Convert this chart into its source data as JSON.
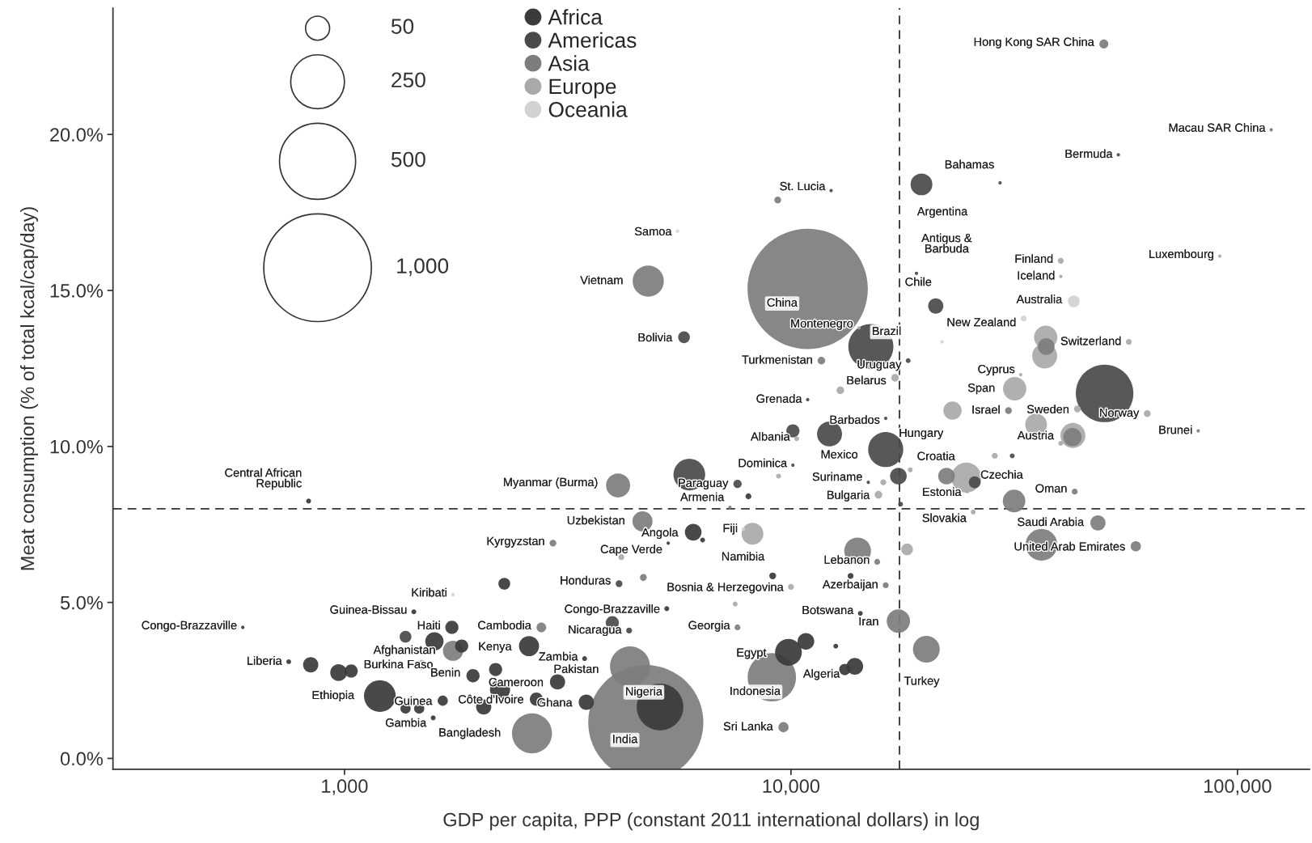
{
  "chart_data": {
    "type": "bubble",
    "xlabel": "GDP per capita, PPP (constant 2011 international dollars) in log",
    "ylabel": "Meat consumption (% of total kcal/cap/day)",
    "log": "x",
    "xlim": [
      303,
      145000
    ],
    "xticks": [
      {
        "value": 1000,
        "label": "1,000"
      },
      {
        "value": 10000,
        "label": "10,000"
      },
      {
        "value": 100000,
        "label": "100,000"
      }
    ],
    "ylim": [
      -0.35,
      24.05
    ],
    "yticks": [
      {
        "value": 0,
        "label": "0.0%"
      },
      {
        "value": 5,
        "label": "5.0%"
      },
      {
        "value": 10,
        "label": "10.0%"
      },
      {
        "value": 15,
        "label": "15.0%"
      },
      {
        "value": 20,
        "label": "20.0%"
      }
    ],
    "grid": false,
    "legend": "top left",
    "size_legend": [
      50,
      250,
      500,
      {
        "value": 1000,
        "label": "1,000"
      }
    ],
    "ref_lines": [
      {
        "axis": "y",
        "value": 8.0,
        "line_style": "dashed",
        "color": "#333333"
      },
      {
        "axis": "x",
        "value": 17500,
        "line_style": "dashed",
        "color": "#333333"
      }
    ],
    "series": [
      {
        "name": "Africa",
        "color": "#3a3a3a",
        "x": [
          750,
          840,
          970,
          1035,
          1200,
          1430,
          1590,
          1740,
          1830,
          1660,
          1370,
          1470,
          1580,
          1940,
          2180,
          2590,
          3450,
          2230,
          2050,
          2280,
          3000,
          2690,
          3480,
          5090,
          9870,
          10800,
          13900,
          13200,
          12600,
          6040,
          6340,
          9100,
          14300,
          5270,
          592,
          831,
          5310,
          13600,
          8030
        ],
        "values": [
          3.1,
          3.0,
          2.75,
          2.8,
          2.0,
          4.7,
          3.75,
          4.2,
          3.6,
          1.85,
          1.6,
          1.6,
          1.3,
          2.65,
          2.85,
          3.6,
          3.2,
          2.2,
          1.65,
          5.6,
          2.45,
          1.9,
          1.8,
          1.65,
          3.4,
          3.75,
          2.95,
          2.85,
          3.6,
          7.25,
          7.0,
          5.85,
          4.65,
          4.8,
          4.2,
          8.25,
          6.9,
          5.85,
          8.4
        ],
        "sizes": [
          2,
          20,
          24,
          15,
          87,
          2,
          29,
          15,
          15,
          9,
          9,
          9,
          2,
          15,
          15,
          35,
          2,
          35,
          20,
          12,
          20,
          15,
          20,
          188,
          62,
          24,
          24,
          11,
          2,
          24,
          2,
          4,
          2,
          2,
          1,
          2,
          1,
          3,
          3
        ]
      },
      {
        "name": "Americas",
        "color": "#4a4a4a",
        "x": [
          5920,
          19600,
          21100,
          15100,
          12200,
          10100,
          16300,
          17400,
          17600,
          25800,
          31300,
          50400,
          3980,
          4340,
          7590,
          10100,
          4120,
          14900,
          12300,
          19100,
          29400,
          54100,
          1370,
          5760,
          10900,
          16300,
          18300
        ],
        "values": [
          9.1,
          18.4,
          14.5,
          13.2,
          10.4,
          10.5,
          9.9,
          9.05,
          8.15,
          8.85,
          9.7,
          11.7,
          4.35,
          4.1,
          8.8,
          9.4,
          5.6,
          8.85,
          18.2,
          15.55,
          18.45,
          19.35,
          3.9,
          13.5,
          11.5,
          10.9,
          12.75
        ],
        "sizes": [
          87,
          41,
          20,
          175,
          54,
          15,
          106,
          24,
          2,
          12,
          2,
          286,
          15,
          3,
          6,
          1,
          4,
          1,
          1,
          1,
          1,
          1,
          12,
          12,
          1,
          1,
          2
        ]
      },
      {
        "name": "Asia",
        "color": "#7d7d7d",
        "x": [
          50200,
          119000,
          4790,
          10900,
          9340,
          11700,
          30700,
          37300,
          42700,
          22300,
          31600,
          43200,
          48700,
          36400,
          59200,
          14100,
          15600,
          16300,
          17400,
          20100,
          4650,
          2930,
          4670,
          2760,
          1750,
          4100,
          4360,
          4730,
          2630,
          9060,
          9620,
          7590,
          7300,
          81700
        ],
        "values": [
          22.9,
          20.15,
          15.3,
          15.05,
          17.9,
          12.75,
          11.15,
          13.2,
          10.3,
          9.05,
          8.25,
          8.55,
          7.55,
          6.85,
          6.8,
          6.65,
          6.3,
          5.55,
          4.4,
          3.5,
          7.6,
          6.9,
          5.8,
          4.2,
          3.45,
          8.75,
          2.95,
          1.15,
          0.8,
          2.6,
          1.0,
          4.2,
          8.05,
          10.5
        ],
        "sizes": [
          7,
          1,
          84,
          1250,
          4,
          5,
          4,
          24,
          29,
          24,
          44,
          3,
          20,
          87,
          9,
          62,
          3,
          3,
          47,
          62,
          35,
          4,
          4,
          8,
          35,
          50,
          138,
          1144,
          138,
          202,
          9,
          3,
          1,
          1
        ]
      },
      {
        "name": "Europe",
        "color": "#a9a9a9",
        "x": [
          14200,
          17100,
          12900,
          23000,
          31700,
          32700,
          40200,
          40200,
          91300,
          57100,
          37200,
          37000,
          43800,
          62800,
          35400,
          42800,
          40200,
          18500,
          24700,
          28600,
          24800,
          25600,
          15700,
          16100,
          9380,
          8200,
          10300,
          10000,
          7500,
          18200,
          1490,
          4170
        ],
        "values": [
          13.8,
          12.2,
          11.8,
          11.15,
          11.85,
          12.3,
          15.95,
          15.45,
          16.1,
          13.35,
          13.5,
          12.9,
          11.2,
          11.05,
          10.7,
          10.35,
          10.1,
          9.25,
          9.0,
          9.7,
          8.55,
          7.9,
          8.45,
          8.85,
          9.05,
          7.2,
          10.25,
          5.5,
          4.95,
          6.7,
          3.0,
          6.45
        ],
        "sizes": [
          1,
          5,
          5,
          29,
          47,
          1,
          3,
          1,
          1,
          3,
          47,
          54,
          4,
          4,
          41,
          54,
          2,
          2,
          78,
          3,
          1,
          2,
          5,
          3,
          2,
          41,
          2,
          3,
          2,
          12,
          8,
          3
        ]
      },
      {
        "name": "Oceania",
        "color": "#d2d2d2",
        "x": [
          5570,
          43000,
          33200,
          21800,
          7830,
          1750
        ],
        "values": [
          16.9,
          14.65,
          14.1,
          13.35,
          7.35,
          5.25
        ],
        "sizes": [
          1,
          12,
          3,
          1,
          1,
          1
        ]
      }
    ],
    "annotations": [
      {
        "text": "Hong Kong SAR China",
        "x": 50200,
        "y": 22.9
      },
      {
        "text": "Macau SAR China",
        "x": 119000,
        "y": 20.15
      },
      {
        "text": "Bermuda",
        "x": 54100,
        "y": 19.35
      },
      {
        "text": "Bahamas",
        "x": 29400,
        "y": 18.45
      },
      {
        "text": "Argentina",
        "x": 19600,
        "y": 18.4
      },
      {
        "text": "St. Lucia",
        "x": 12300,
        "y": 18.2
      },
      {
        "text": "Samoa",
        "x": 5570,
        "y": 16.9
      },
      {
        "text": "Antigus &\nBarbuda",
        "x": 19100,
        "y": 15.55
      },
      {
        "text": "Finland",
        "x": 40200,
        "y": 15.95
      },
      {
        "text": "Iceland",
        "x": 40200,
        "y": 15.45
      },
      {
        "text": "Luxembourg",
        "x": 91300,
        "y": 16.1
      },
      {
        "text": "Vietnam",
        "x": 4790,
        "y": 15.3
      },
      {
        "text": "China",
        "x": 10900,
        "y": 15.05
      },
      {
        "text": "Chile",
        "x": 21100,
        "y": 14.5
      },
      {
        "text": "Australia",
        "x": 43000,
        "y": 14.65
      },
      {
        "text": "New Zealand",
        "x": 33200,
        "y": 14.1
      },
      {
        "text": "Montenegro",
        "x": 14200,
        "y": 13.8
      },
      {
        "text": "Bolivia",
        "x": 5760,
        "y": 13.5
      },
      {
        "text": "Switzerland",
        "x": 57100,
        "y": 13.35
      },
      {
        "text": "Brazil",
        "x": 15100,
        "y": 13.2
      },
      {
        "text": "Turkmenistan",
        "x": 11700,
        "y": 12.75
      },
      {
        "text": "Uruguay",
        "x": 18300,
        "y": 12.75
      },
      {
        "text": "Belarus",
        "x": 17100,
        "y": 12.2
      },
      {
        "text": "Cyprus",
        "x": 32700,
        "y": 12.3
      },
      {
        "text": "Span",
        "x": 31700,
        "y": 11.85
      },
      {
        "text": "Grenada",
        "x": 10900,
        "y": 11.5
      },
      {
        "text": "Israel",
        "x": 30700,
        "y": 11.15
      },
      {
        "text": "Sweden",
        "x": 43800,
        "y": 11.2
      },
      {
        "text": "Norway",
        "x": 62800,
        "y": 11.05
      },
      {
        "text": "Hungary",
        "x": 23000,
        "y": 11.15
      },
      {
        "text": "Brunei",
        "x": 81700,
        "y": 10.5
      },
      {
        "text": "Barbados",
        "x": 16300,
        "y": 10.9
      },
      {
        "text": "Albania",
        "x": 10300,
        "y": 10.25
      },
      {
        "text": "Austria",
        "x": 40200,
        "y": 10.1
      },
      {
        "text": "Mexico",
        "x": 16300,
        "y": 9.9
      },
      {
        "text": "Croatia",
        "x": 18500,
        "y": 9.25
      },
      {
        "text": "Dominica",
        "x": 10100,
        "y": 9.4
      },
      {
        "text": "Central African\nRepublic",
        "x": 831,
        "y": 8.25
      },
      {
        "text": "Myanmar (Burma)",
        "x": 4100,
        "y": 8.75
      },
      {
        "text": "Paraguay",
        "x": 7590,
        "y": 8.8
      },
      {
        "text": "Suriname",
        "x": 14900,
        "y": 8.85
      },
      {
        "text": "Czechia",
        "x": 28600,
        "y": 9.7
      },
      {
        "text": "Armenia",
        "x": 7300,
        "y": 8.05
      },
      {
        "text": "Bulgaria",
        "x": 15700,
        "y": 8.45
      },
      {
        "text": "Estonia",
        "x": 24800,
        "y": 8.55
      },
      {
        "text": "Oman",
        "x": 43200,
        "y": 8.55
      },
      {
        "text": "Slovakia",
        "x": 25600,
        "y": 7.9
      },
      {
        "text": "Uzbekistan",
        "x": 4650,
        "y": 7.6
      },
      {
        "text": "Saudi Arabia",
        "x": 48700,
        "y": 7.55
      },
      {
        "text": "Angola",
        "x": 6040,
        "y": 7.25
      },
      {
        "text": "Fiji",
        "x": 7830,
        "y": 7.35
      },
      {
        "text": "Kyrgyzstan",
        "x": 2930,
        "y": 6.9
      },
      {
        "text": "Cape Verde",
        "x": 5310,
        "y": 6.9
      },
      {
        "text": "United Arab Emirates",
        "x": 59200,
        "y": 6.8
      },
      {
        "text": "Lebanon",
        "x": 15600,
        "y": 6.3
      },
      {
        "text": "Namibia",
        "x": 9100,
        "y": 5.85
      },
      {
        "text": "Honduras",
        "x": 4120,
        "y": 5.6
      },
      {
        "text": "Azerbaijan",
        "x": 16300,
        "y": 5.55
      },
      {
        "text": "Bosnia & Herzegovina",
        "x": 10000,
        "y": 5.5
      },
      {
        "text": "Kiribati",
        "x": 1750,
        "y": 5.25
      },
      {
        "text": "Guinea-Bissau",
        "x": 1430,
        "y": 4.7
      },
      {
        "text": "Congo-Brazzaville",
        "x": 5270,
        "y": 4.8
      },
      {
        "text": "Botswana",
        "x": 14300,
        "y": 4.65
      },
      {
        "text": "Congo-Brazzaville",
        "x": 592,
        "y": 4.2
      },
      {
        "text": "Haiti",
        "x": 1370,
        "y": 3.9
      },
      {
        "text": "Cambodia",
        "x": 2760,
        "y": 4.2
      },
      {
        "text": "Nicaragua",
        "x": 4340,
        "y": 4.1
      },
      {
        "text": "Georgia",
        "x": 7590,
        "y": 4.2
      },
      {
        "text": "Iran",
        "x": 17400,
        "y": 4.4
      },
      {
        "text": "Afghanistan",
        "x": 1750,
        "y": 3.45
      },
      {
        "text": "Kenya",
        "x": 2590,
        "y": 3.6
      },
      {
        "text": "Zambia",
        "x": 3450,
        "y": 3.2
      },
      {
        "text": "Egypt",
        "x": 9870,
        "y": 3.4
      },
      {
        "text": "Burkina Faso",
        "x": 1035,
        "y": 2.8
      },
      {
        "text": "Liberia",
        "x": 750,
        "y": 3.1
      },
      {
        "text": "Pakistan",
        "x": 4360,
        "y": 2.95
      },
      {
        "text": "Algeria",
        "x": 13900,
        "y": 2.95
      },
      {
        "text": "Turkey",
        "x": 20100,
        "y": 3.5
      },
      {
        "text": "Benin",
        "x": 1940,
        "y": 2.65
      },
      {
        "text": "Cameroon",
        "x": 3000,
        "y": 2.45
      },
      {
        "text": "Indonesia",
        "x": 9060,
        "y": 2.6
      },
      {
        "text": "Ethiopia",
        "x": 1200,
        "y": 2.0
      },
      {
        "text": "Guinea",
        "x": 1660,
        "y": 1.85
      },
      {
        "text": "Côte d'Ivoire",
        "x": 2690,
        "y": 1.9
      },
      {
        "text": "Ghana",
        "x": 3480,
        "y": 1.8
      },
      {
        "text": "Nigeria",
        "x": 5090,
        "y": 1.65
      },
      {
        "text": "Gambia",
        "x": 1580,
        "y": 1.3
      },
      {
        "text": "Sri Lanka",
        "x": 9620,
        "y": 1.0
      },
      {
        "text": "Bangladesh",
        "x": 2630,
        "y": 0.8
      },
      {
        "text": "India",
        "x": 4730,
        "y": 1.15
      }
    ]
  }
}
